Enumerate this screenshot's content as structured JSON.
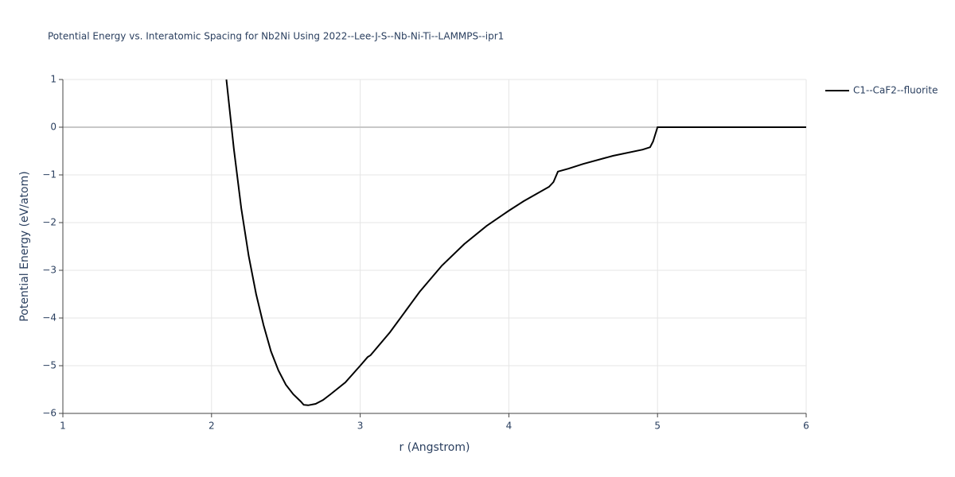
{
  "chart_data": {
    "type": "line",
    "title": "Potential Energy vs. Interatomic Spacing for Nb2Ni Using 2022--Lee-J-S--Nb-Ni-Ti--LAMMPS--ipr1",
    "x_label": "r (Angstrom)",
    "y_label": "Potential Energy (eV/atom)",
    "xlim": [
      1,
      6
    ],
    "ylim": [
      -6,
      1
    ],
    "xticks": [
      1,
      2,
      3,
      4,
      5,
      6
    ],
    "yticks": [
      1,
      0,
      {
        "value": -1,
        "label": "−1"
      },
      {
        "value": -2,
        "label": "−2"
      },
      {
        "value": -3,
        "label": "−3"
      },
      {
        "value": -4,
        "label": "−4"
      },
      {
        "value": -5,
        "label": "−5"
      },
      {
        "value": -6,
        "label": "−6"
      }
    ],
    "grid": true,
    "legend": "top-right",
    "series": [
      {
        "name": "C1--CaF2--fluorite",
        "color": "#000000",
        "x": [
          2.1,
          2.15,
          2.2,
          2.25,
          2.3,
          2.35,
          2.4,
          2.45,
          2.5,
          2.55,
          2.6,
          2.62,
          2.65,
          2.7,
          2.75,
          2.8,
          2.9,
          3.0,
          3.05,
          3.07,
          3.2,
          3.4,
          3.55,
          3.7,
          3.85,
          4.0,
          4.1,
          4.27,
          4.3,
          4.33,
          4.4,
          4.5,
          4.7,
          4.9,
          4.95,
          4.97,
          5.0,
          6.0
        ],
        "values": [
          1.0,
          -0.45,
          -1.7,
          -2.7,
          -3.5,
          -4.15,
          -4.7,
          -5.1,
          -5.4,
          -5.6,
          -5.75,
          -5.82,
          -5.83,
          -5.8,
          -5.72,
          -5.6,
          -5.35,
          -5.0,
          -4.82,
          -4.78,
          -4.3,
          -3.45,
          -2.9,
          -2.45,
          -2.07,
          -1.75,
          -1.55,
          -1.25,
          -1.15,
          -0.93,
          -0.87,
          -0.77,
          -0.6,
          -0.47,
          -0.42,
          -0.3,
          0,
          0
        ]
      }
    ]
  }
}
